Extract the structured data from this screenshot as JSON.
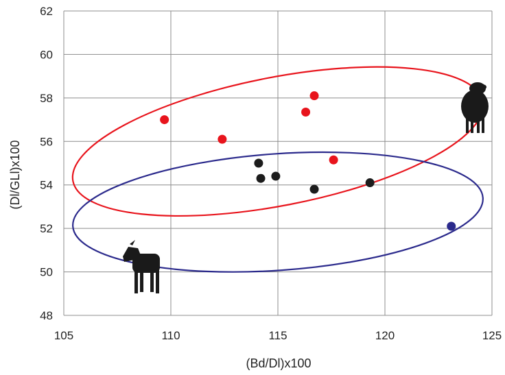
{
  "chart_data": {
    "type": "scatter",
    "xlabel": "(Bd/Dl)x100",
    "ylabel": "(Dl/GLl)x100",
    "xlim": [
      105,
      125
    ],
    "ylim": [
      48,
      62
    ],
    "x_ticks": [
      105,
      110,
      115,
      120,
      125
    ],
    "y_ticks": [
      48,
      50,
      52,
      54,
      56,
      58,
      60,
      62
    ],
    "grid": true,
    "series": [
      {
        "color": "#e8141c",
        "points": [
          {
            "x": 109.7,
            "y": 57.0
          },
          {
            "x": 112.4,
            "y": 56.1
          },
          {
            "x": 116.3,
            "y": 57.35
          },
          {
            "x": 116.7,
            "y": 58.1
          },
          {
            "x": 117.6,
            "y": 55.15
          }
        ]
      },
      {
        "color": "#1c1c1c",
        "points": [
          {
            "x": 114.1,
            "y": 55.0
          },
          {
            "x": 114.2,
            "y": 54.3
          },
          {
            "x": 114.9,
            "y": 54.4
          },
          {
            "x": 116.7,
            "y": 53.8
          },
          {
            "x": 119.3,
            "y": 54.1
          }
        ]
      },
      {
        "color": "#2b2a8c",
        "points": [
          {
            "x": 123.1,
            "y": 52.1
          }
        ]
      }
    ],
    "ellipses": [
      {
        "color": "#e8141c",
        "cx": 115.0,
        "cy": 56.0,
        "rx": 9.75,
        "ry": 2.95,
        "angle_deg": -11
      },
      {
        "color": "#2b2a8c",
        "cx": 115.0,
        "cy": 52.75,
        "rx": 9.6,
        "ry": 2.68,
        "angle_deg": -4
      }
    ],
    "annotations": [
      {
        "icon": "sheep-icon",
        "x": 123.5,
        "y": 57.0
      },
      {
        "icon": "goat-icon",
        "x": 108.6,
        "y": 50.5
      }
    ]
  }
}
